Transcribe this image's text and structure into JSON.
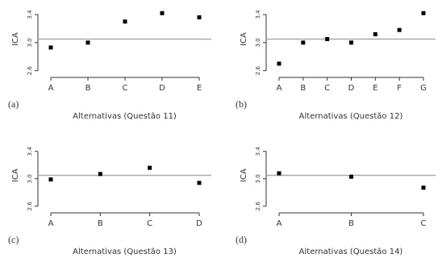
{
  "chart_data": [
    {
      "type": "scatter",
      "panel_label": "(a)",
      "xlabel": "Alternativas (Questão 11)",
      "ylabel": "ICA",
      "categories": [
        "A",
        "B",
        "C",
        "D",
        "E"
      ],
      "values": [
        2.93,
        3.0,
        3.3,
        3.42,
        3.36
      ],
      "color": "#000000",
      "hline": 3.05,
      "hline_color": "#aaaaaa",
      "ylim": [
        2.55,
        3.55
      ],
      "yticks": [
        2.6,
        {
          "value": 3,
          "label": "3.0"
        },
        3.4
      ]
    },
    {
      "type": "scatter",
      "panel_label": "(b)",
      "xlabel": "Alternativas (Questão 12)",
      "ylabel": "ICA",
      "categories": [
        "A",
        "B",
        "C",
        "D",
        "E",
        "F",
        "G"
      ],
      "values": [
        2.7,
        3.0,
        3.05,
        3.0,
        3.12,
        3.18,
        3.42
      ],
      "color": "#000000",
      "hline": 3.05,
      "hline_color": "#aaaaaa",
      "ylim": [
        2.55,
        3.55
      ],
      "yticks": [
        2.6,
        {
          "value": 3,
          "label": "3.0"
        },
        3.4
      ]
    },
    {
      "type": "scatter",
      "panel_label": "(c)",
      "xlabel": "Alternativas (Questão 13)",
      "ylabel": "ICA",
      "categories": [
        "A",
        "B",
        "C",
        "D"
      ],
      "values": [
        2.99,
        3.07,
        3.16,
        2.94
      ],
      "color": "#000000",
      "hline": 3.05,
      "hline_color": "#aaaaaa",
      "ylim": [
        2.55,
        3.55
      ],
      "yticks": [
        2.6,
        {
          "value": 3,
          "label": "3.0"
        },
        3.4
      ]
    },
    {
      "type": "scatter",
      "panel_label": "(d)",
      "xlabel": "Alternativas (Questão 14)",
      "ylabel": "ICA",
      "categories": [
        "A",
        "B",
        "C"
      ],
      "values": [
        3.08,
        3.03,
        2.87
      ],
      "color": "#000000",
      "hline": 3.05,
      "hline_color": "#aaaaaa",
      "ylim": [
        2.55,
        3.55
      ],
      "yticks": [
        2.6,
        {
          "value": 3,
          "label": "3.0"
        },
        3.4
      ]
    }
  ]
}
